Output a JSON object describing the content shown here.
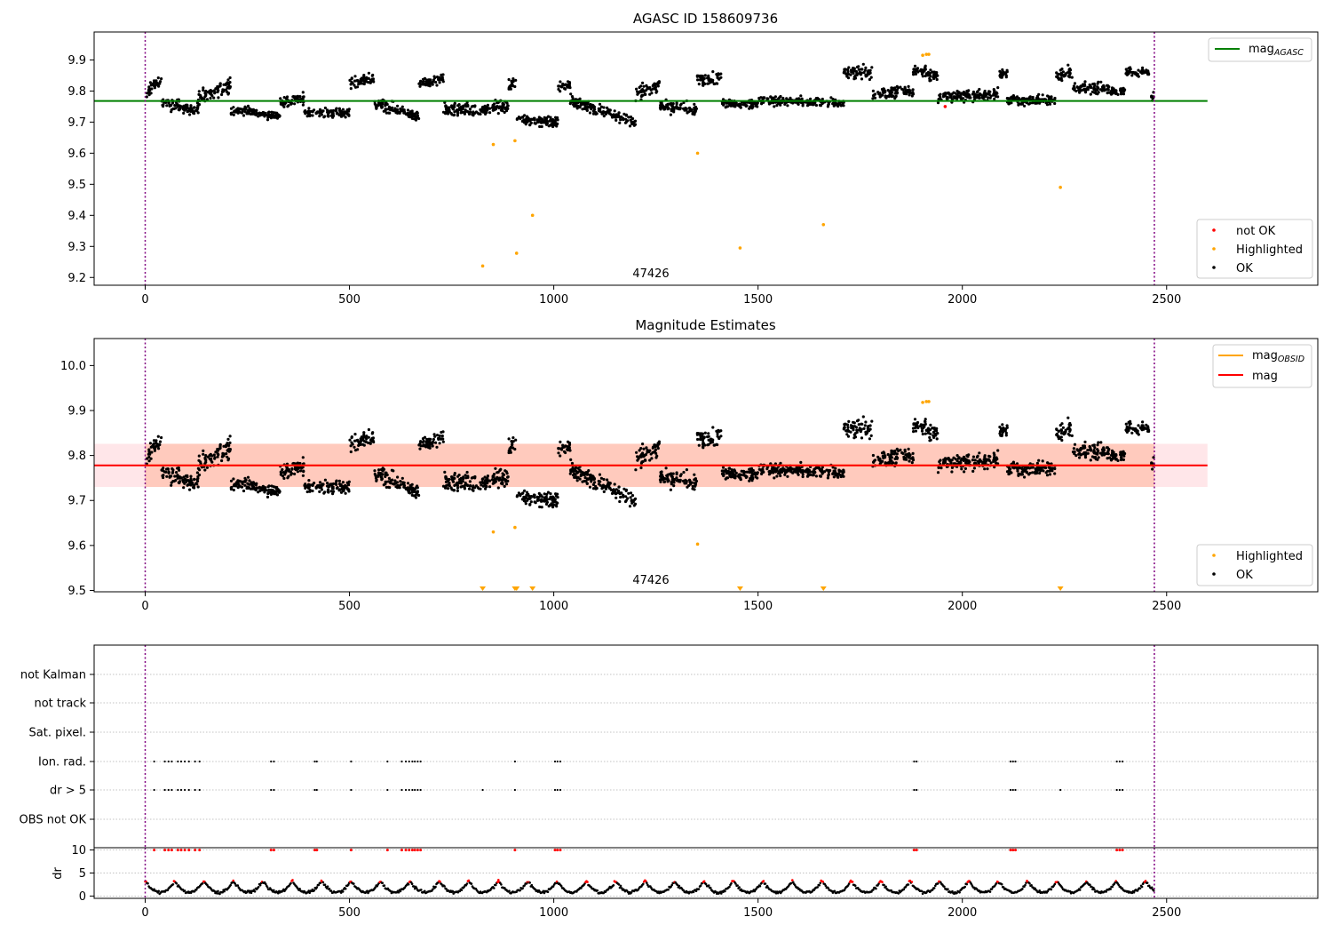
{
  "chart_data": [
    {
      "type": "scatter",
      "title": "AGASC ID 158609736",
      "xlabel": "",
      "ylabel": "",
      "xlim": [
        -125,
        2870
      ],
      "ylim": [
        9.175,
        9.99
      ],
      "xticks": [
        "0",
        "500",
        "1000",
        "1500",
        "2000",
        "2500"
      ],
      "yticks": [
        "9.2",
        "9.3",
        "9.4",
        "9.5",
        "9.6",
        "9.7",
        "9.8",
        "9.9"
      ],
      "obsid_label": "47426",
      "obsid_label_x": 1235,
      "obs_boundaries": [
        0,
        2470
      ],
      "hline": {
        "name": "mag_AGASC",
        "base": "mag",
        "sub": "AGASC",
        "y": 9.768,
        "x": [
          -125,
          2600
        ],
        "color": "#008000"
      },
      "highlighted": {
        "x": [
          826,
          852,
          905,
          909,
          948,
          1352,
          1456,
          1660,
          1903,
          1912,
          1918,
          2240
        ],
        "y": [
          9.237,
          9.628,
          9.64,
          9.278,
          9.4,
          9.6,
          9.295,
          9.37,
          9.915,
          9.918,
          9.918,
          9.49
        ]
      },
      "not_ok": {
        "x": [
          1958
        ],
        "y": [
          9.75
        ]
      },
      "legends": {
        "top": [
          {
            "label": "mag",
            "sub": "AGASC",
            "color": "#008000",
            "kind": "line"
          }
        ],
        "bottom": [
          {
            "label": "not OK",
            "color": "#ff0000",
            "kind": "point"
          },
          {
            "label": "Highlighted",
            "color": "#ffa500",
            "kind": "point"
          },
          {
            "label": "OK",
            "color": "#000000",
            "kind": "point"
          }
        ],
        "placement": "top-right / bottom-right"
      },
      "ok_segments": [
        [
          0,
          40,
          9.79,
          9.84,
          0.02
        ],
        [
          40,
          130,
          9.76,
          9.74,
          0.02
        ],
        [
          130,
          210,
          9.78,
          9.82,
          0.025
        ],
        [
          210,
          330,
          9.74,
          9.72,
          0.015
        ],
        [
          330,
          390,
          9.76,
          9.78,
          0.02
        ],
        [
          390,
          500,
          9.73,
          9.73,
          0.015
        ],
        [
          500,
          560,
          9.82,
          9.84,
          0.02
        ],
        [
          560,
          670,
          9.76,
          9.72,
          0.02
        ],
        [
          670,
          730,
          9.82,
          9.84,
          0.015
        ],
        [
          730,
          840,
          9.74,
          9.74,
          0.02
        ],
        [
          840,
          890,
          9.75,
          9.75,
          0.02
        ],
        [
          890,
          910,
          9.82,
          9.83,
          0.02
        ],
        [
          910,
          1010,
          9.71,
          9.7,
          0.02
        ],
        [
          1010,
          1040,
          9.81,
          9.82,
          0.02
        ],
        [
          1040,
          1200,
          9.77,
          9.7,
          0.02
        ],
        [
          1200,
          1260,
          9.79,
          9.82,
          0.02
        ],
        [
          1260,
          1350,
          9.75,
          9.74,
          0.02
        ],
        [
          1350,
          1410,
          9.84,
          9.84,
          0.02
        ],
        [
          1410,
          1500,
          9.76,
          9.76,
          0.015
        ],
        [
          1500,
          1710,
          9.77,
          9.76,
          0.015
        ],
        [
          1710,
          1780,
          9.86,
          9.86,
          0.02
        ],
        [
          1780,
          1880,
          9.79,
          9.8,
          0.02
        ],
        [
          1880,
          1940,
          9.87,
          9.85,
          0.02
        ],
        [
          1940,
          2090,
          9.78,
          9.79,
          0.02
        ],
        [
          2090,
          2110,
          9.86,
          9.86,
          0.02
        ],
        [
          2110,
          2230,
          9.77,
          9.77,
          0.015
        ],
        [
          2230,
          2270,
          9.85,
          9.86,
          0.02
        ],
        [
          2270,
          2360,
          9.81,
          9.81,
          0.02
        ],
        [
          2360,
          2400,
          9.8,
          9.8,
          0.015
        ],
        [
          2400,
          2460,
          9.86,
          9.86,
          0.015
        ],
        [
          2460,
          2470,
          9.78,
          9.78,
          0.015
        ]
      ]
    },
    {
      "type": "scatter",
      "title": "Magnitude Estimates",
      "xlabel": "",
      "ylabel": "",
      "xlim": [
        -125,
        2870
      ],
      "ylim": [
        9.497,
        10.06
      ],
      "xticks": [
        "0",
        "500",
        "1000",
        "1500",
        "2000",
        "2500"
      ],
      "yticks": [
        "9.5",
        "9.6",
        "9.7",
        "9.8",
        "9.9",
        "10.0"
      ],
      "obsid_label": "47426",
      "obsid_label_x": 1235,
      "obs_boundaries": [
        0,
        2470
      ],
      "mag_line": {
        "name": "mag",
        "y": 9.778,
        "x": [
          -125,
          2600
        ],
        "color": "#ff0000"
      },
      "mag_band": {
        "y": [
          9.73,
          9.826
        ],
        "x": [
          -125,
          2600
        ],
        "color": "#ffb6c1"
      },
      "mag_obsid_line": {
        "name": "mag_OBSID",
        "base": "mag",
        "sub": "OBSID",
        "y": 9.778,
        "x": [
          0,
          2470
        ],
        "color": "#ffa500"
      },
      "mag_obsid_band": {
        "y": [
          9.73,
          9.826
        ],
        "x": [
          0,
          2470
        ],
        "color": "#ffa07a"
      },
      "highlighted": {
        "x": [
          852,
          905,
          1352,
          1903,
          1912,
          1918
        ],
        "y": [
          9.63,
          9.64,
          9.603,
          9.918,
          9.92,
          9.92
        ]
      },
      "below_limit": {
        "x": [
          826,
          905,
          909,
          948,
          1456,
          1660,
          2240
        ]
      },
      "legends": {
        "top": [
          {
            "label": "mag",
            "sub": "OBSID",
            "color": "#ffa500",
            "kind": "line"
          },
          {
            "label": "mag",
            "sub": "",
            "color": "#ff0000",
            "kind": "line"
          }
        ],
        "bottom": [
          {
            "label": "Highlighted",
            "color": "#ffa500",
            "kind": "point"
          },
          {
            "label": "OK",
            "color": "#000000",
            "kind": "point"
          }
        ],
        "placement": "top-right / bottom-right"
      }
    },
    {
      "type": "scatter",
      "title": "",
      "xlabel": "",
      "ylabel": "",
      "xlim": [
        -125,
        2870
      ],
      "xticks": [
        "0",
        "500",
        "1000",
        "1500",
        "2000",
        "2500"
      ],
      "flag_rows": [
        "not Kalman",
        "not track",
        "Sat. pixel.",
        "Ion. rad.",
        "dr > 5",
        "OBS not OK"
      ],
      "grid": true,
      "obs_boundaries": [
        0,
        2470
      ],
      "ion_rad_x": [
        22,
        48,
        57,
        65,
        80,
        88,
        97,
        107,
        122,
        133,
        308,
        315,
        415,
        420,
        504,
        593,
        628,
        638,
        646,
        654,
        660,
        667,
        674,
        905,
        1003,
        1009,
        1016,
        1882,
        1888,
        2118,
        2124,
        2130,
        2378,
        2385,
        2392
      ],
      "dr5_x": [
        22,
        48,
        57,
        65,
        80,
        88,
        97,
        107,
        122,
        133,
        308,
        315,
        415,
        420,
        504,
        593,
        628,
        638,
        646,
        654,
        660,
        667,
        674,
        826,
        905,
        1003,
        1009,
        1016,
        1882,
        1888,
        2118,
        2124,
        2130,
        2240,
        2378,
        2385,
        2392
      ]
    },
    {
      "type": "scatter",
      "title": "",
      "xlabel": "",
      "ylabel": "dr",
      "xlim": [
        -125,
        2870
      ],
      "ylim": [
        -0.5,
        10.5
      ],
      "xticks": [
        "0",
        "500",
        "1000",
        "1500",
        "2000",
        "2500"
      ],
      "yticks": [
        "0",
        "5",
        "10"
      ],
      "grid": true,
      "obs_boundaries": [
        0,
        2470
      ],
      "clipped_x": [
        22,
        48,
        57,
        65,
        80,
        88,
        97,
        107,
        122,
        133,
        308,
        315,
        415,
        420,
        504,
        593,
        628,
        638,
        646,
        654,
        660,
        667,
        674,
        905,
        1003,
        1009,
        1016,
        1882,
        1888,
        2118,
        2124,
        2130,
        2378,
        2385,
        2392
      ],
      "clipped_y": 10,
      "red_threshold": 3,
      "arc_period": 72
    }
  ]
}
